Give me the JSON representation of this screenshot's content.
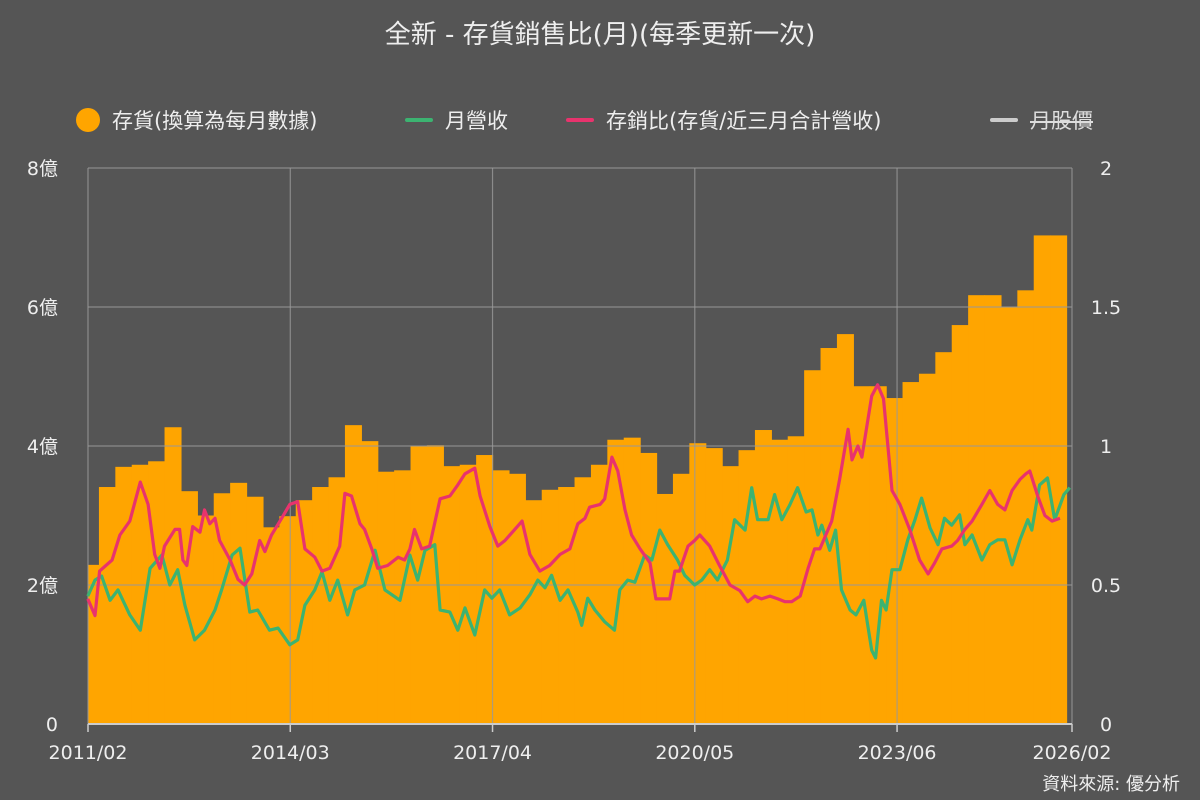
{
  "chart_data": {
    "type": "bar+line",
    "title": "全新 - 存貨銷售比(月)(每季更新一次)",
    "source": "資料來源: 優分析",
    "x_range": [
      "2011/02",
      "2026/02"
    ],
    "x_ticks": [
      "2011/02",
      "2014/03",
      "2017/04",
      "2020/05",
      "2023/06",
      "2026/02"
    ],
    "y_left": {
      "range": [
        0,
        8
      ],
      "ticks": [
        "0",
        "2億",
        "4億",
        "6億",
        "8億"
      ],
      "unit": "億"
    },
    "y_right": {
      "range": [
        0,
        2
      ],
      "ticks": [
        "0",
        "0.5",
        "1",
        "1.5",
        "2"
      ]
    },
    "grid": true,
    "legend_position": "top",
    "legend": [
      {
        "label": "存貨(換算為每月數據)",
        "color": "#FFA500",
        "symbol": "circle"
      },
      {
        "label": "月營收",
        "color": "#3CB371",
        "symbol": "line"
      },
      {
        "label": "存銷比(存貨/近三月合計營收)",
        "color": "#E8336D",
        "symbol": "line"
      },
      {
        "label": "月股價",
        "color": "#CCCCCC",
        "symbol": "line",
        "hidden": true
      }
    ],
    "inventory": {
      "name": "存貨(換算為每月數據)",
      "axis": "left",
      "period": "quarterly",
      "start": "2011/02",
      "values": [
        2.29,
        3.41,
        3.7,
        3.73,
        3.78,
        4.27,
        3.35,
        3.0,
        3.32,
        3.47,
        3.27,
        2.83,
        2.99,
        3.22,
        3.41,
        3.55,
        4.3,
        4.07,
        3.63,
        3.65,
        4.0,
        4.01,
        3.71,
        3.73,
        3.87,
        3.65,
        3.6,
        3.22,
        3.37,
        3.41,
        3.55,
        3.73,
        4.09,
        4.12,
        3.9,
        3.31,
        3.6,
        4.04,
        3.97,
        3.71,
        3.94,
        4.23,
        4.09,
        4.14,
        5.09,
        5.41,
        5.61,
        4.86,
        4.86,
        4.69,
        4.92,
        5.04,
        5.35,
        5.74,
        6.17,
        6.17,
        6.0,
        6.24,
        7.03,
        7.03
      ]
    },
    "revenue": {
      "name": "月營收",
      "axis": "left",
      "points": [
        [
          2011.08,
          1.84
        ],
        [
          2011.19,
          2.07
        ],
        [
          2011.29,
          2.13
        ],
        [
          2011.42,
          1.78
        ],
        [
          2011.54,
          1.93
        ],
        [
          2011.72,
          1.57
        ],
        [
          2011.88,
          1.35
        ],
        [
          2012.03,
          2.24
        ],
        [
          2012.21,
          2.43
        ],
        [
          2012.33,
          2.0
        ],
        [
          2012.45,
          2.22
        ],
        [
          2012.56,
          1.71
        ],
        [
          2012.71,
          1.21
        ],
        [
          2012.86,
          1.35
        ],
        [
          2013.02,
          1.64
        ],
        [
          2013.12,
          1.93
        ],
        [
          2013.28,
          2.43
        ],
        [
          2013.4,
          2.53
        ],
        [
          2013.55,
          1.61
        ],
        [
          2013.67,
          1.64
        ],
        [
          2013.85,
          1.35
        ],
        [
          2013.98,
          1.38
        ],
        [
          2014.16,
          1.14
        ],
        [
          2014.28,
          1.21
        ],
        [
          2014.39,
          1.71
        ],
        [
          2014.54,
          1.93
        ],
        [
          2014.65,
          2.19
        ],
        [
          2014.77,
          1.78
        ],
        [
          2014.89,
          2.07
        ],
        [
          2015.04,
          1.57
        ],
        [
          2015.15,
          1.93
        ],
        [
          2015.3,
          2.0
        ],
        [
          2015.46,
          2.5
        ],
        [
          2015.61,
          1.93
        ],
        [
          2015.84,
          1.78
        ],
        [
          2015.99,
          2.43
        ],
        [
          2016.11,
          2.07
        ],
        [
          2016.22,
          2.5
        ],
        [
          2016.37,
          2.58
        ],
        [
          2016.45,
          1.64
        ],
        [
          2016.6,
          1.61
        ],
        [
          2016.72,
          1.35
        ],
        [
          2016.83,
          1.67
        ],
        [
          2016.98,
          1.28
        ],
        [
          2017.13,
          1.93
        ],
        [
          2017.24,
          1.81
        ],
        [
          2017.36,
          1.93
        ],
        [
          2017.51,
          1.57
        ],
        [
          2017.67,
          1.67
        ],
        [
          2017.82,
          1.86
        ],
        [
          2017.94,
          2.07
        ],
        [
          2018.05,
          1.96
        ],
        [
          2018.15,
          2.14
        ],
        [
          2018.28,
          1.78
        ],
        [
          2018.4,
          1.93
        ],
        [
          2018.55,
          1.61
        ],
        [
          2018.61,
          1.42
        ],
        [
          2018.7,
          1.81
        ],
        [
          2018.81,
          1.64
        ],
        [
          2018.96,
          1.47
        ],
        [
          2019.11,
          1.35
        ],
        [
          2019.19,
          1.93
        ],
        [
          2019.31,
          2.07
        ],
        [
          2019.42,
          2.04
        ],
        [
          2019.57,
          2.43
        ],
        [
          2019.68,
          2.36
        ],
        [
          2019.8,
          2.79
        ],
        [
          2019.92,
          2.58
        ],
        [
          2020.07,
          2.36
        ],
        [
          2020.18,
          2.14
        ],
        [
          2020.33,
          2.0
        ],
        [
          2020.44,
          2.07
        ],
        [
          2020.56,
          2.22
        ],
        [
          2020.68,
          2.07
        ],
        [
          2020.83,
          2.36
        ],
        [
          2020.94,
          2.94
        ],
        [
          2021.1,
          2.79
        ],
        [
          2021.2,
          3.4
        ],
        [
          2021.29,
          2.94
        ],
        [
          2021.45,
          2.94
        ],
        [
          2021.55,
          3.3
        ],
        [
          2021.66,
          2.94
        ],
        [
          2021.78,
          3.15
        ],
        [
          2021.9,
          3.4
        ],
        [
          2022.03,
          3.05
        ],
        [
          2022.12,
          3.08
        ],
        [
          2022.21,
          2.72
        ],
        [
          2022.27,
          2.86
        ],
        [
          2022.39,
          2.5
        ],
        [
          2022.48,
          2.79
        ],
        [
          2022.57,
          1.93
        ],
        [
          2022.7,
          1.64
        ],
        [
          2022.79,
          1.57
        ],
        [
          2022.91,
          1.78
        ],
        [
          2023.03,
          1.06
        ],
        [
          2023.09,
          0.95
        ],
        [
          2023.18,
          1.78
        ],
        [
          2023.25,
          1.64
        ],
        [
          2023.34,
          2.22
        ],
        [
          2023.46,
          2.22
        ],
        [
          2023.58,
          2.65
        ],
        [
          2023.69,
          2.94
        ],
        [
          2023.79,
          3.25
        ],
        [
          2023.92,
          2.82
        ],
        [
          2024.04,
          2.58
        ],
        [
          2024.14,
          2.96
        ],
        [
          2024.25,
          2.86
        ],
        [
          2024.37,
          3.01
        ],
        [
          2024.45,
          2.58
        ],
        [
          2024.56,
          2.72
        ],
        [
          2024.71,
          2.36
        ],
        [
          2024.83,
          2.58
        ],
        [
          2024.95,
          2.65
        ],
        [
          2025.06,
          2.65
        ],
        [
          2025.17,
          2.29
        ],
        [
          2025.29,
          2.65
        ],
        [
          2025.41,
          2.94
        ],
        [
          2025.47,
          2.79
        ],
        [
          2025.59,
          3.44
        ],
        [
          2025.71,
          3.54
        ],
        [
          2025.82,
          2.94
        ],
        [
          2025.96,
          3.3
        ],
        [
          2026.05,
          3.4
        ]
      ]
    },
    "ratio": {
      "name": "存銷比(存貨/近三月合計營收)",
      "axis": "right",
      "points": [
        [
          2011.08,
          0.45
        ],
        [
          2011.19,
          0.39
        ],
        [
          2011.26,
          0.55
        ],
        [
          2011.45,
          0.59
        ],
        [
          2011.57,
          0.68
        ],
        [
          2011.72,
          0.73
        ],
        [
          2011.88,
          0.87
        ],
        [
          2012.0,
          0.79
        ],
        [
          2012.1,
          0.61
        ],
        [
          2012.18,
          0.56
        ],
        [
          2012.25,
          0.64
        ],
        [
          2012.41,
          0.7
        ],
        [
          2012.48,
          0.7
        ],
        [
          2012.53,
          0.59
        ],
        [
          2012.59,
          0.57
        ],
        [
          2012.68,
          0.71
        ],
        [
          2012.79,
          0.69
        ],
        [
          2012.86,
          0.77
        ],
        [
          2012.94,
          0.72
        ],
        [
          2013.02,
          0.74
        ],
        [
          2013.09,
          0.66
        ],
        [
          2013.25,
          0.59
        ],
        [
          2013.37,
          0.52
        ],
        [
          2013.47,
          0.5
        ],
        [
          2013.58,
          0.54
        ],
        [
          2013.7,
          0.66
        ],
        [
          2013.78,
          0.62
        ],
        [
          2013.88,
          0.68
        ],
        [
          2014.01,
          0.73
        ],
        [
          2014.16,
          0.79
        ],
        [
          2014.28,
          0.8
        ],
        [
          2014.39,
          0.63
        ],
        [
          2014.54,
          0.6
        ],
        [
          2014.65,
          0.55
        ],
        [
          2014.77,
          0.56
        ],
        [
          2014.92,
          0.64
        ],
        [
          2015.0,
          0.83
        ],
        [
          2015.1,
          0.82
        ],
        [
          2015.23,
          0.72
        ],
        [
          2015.3,
          0.7
        ],
        [
          2015.41,
          0.63
        ],
        [
          2015.5,
          0.56
        ],
        [
          2015.65,
          0.57
        ],
        [
          2015.81,
          0.6
        ],
        [
          2015.91,
          0.59
        ],
        [
          2015.99,
          0.63
        ],
        [
          2016.06,
          0.7
        ],
        [
          2016.17,
          0.63
        ],
        [
          2016.29,
          0.64
        ],
        [
          2016.45,
          0.81
        ],
        [
          2016.6,
          0.82
        ],
        [
          2016.72,
          0.86
        ],
        [
          2016.83,
          0.9
        ],
        [
          2016.98,
          0.92
        ],
        [
          2017.06,
          0.82
        ],
        [
          2017.21,
          0.71
        ],
        [
          2017.33,
          0.64
        ],
        [
          2017.44,
          0.66
        ],
        [
          2017.59,
          0.7
        ],
        [
          2017.7,
          0.73
        ],
        [
          2017.82,
          0.61
        ],
        [
          2017.97,
          0.55
        ],
        [
          2018.12,
          0.57
        ],
        [
          2018.28,
          0.61
        ],
        [
          2018.43,
          0.63
        ],
        [
          2018.55,
          0.72
        ],
        [
          2018.66,
          0.74
        ],
        [
          2018.73,
          0.78
        ],
        [
          2018.89,
          0.79
        ],
        [
          2018.96,
          0.81
        ],
        [
          2019.07,
          0.96
        ],
        [
          2019.16,
          0.91
        ],
        [
          2019.27,
          0.77
        ],
        [
          2019.37,
          0.68
        ],
        [
          2019.5,
          0.63
        ],
        [
          2019.65,
          0.58
        ],
        [
          2019.74,
          0.45
        ],
        [
          2019.83,
          0.45
        ],
        [
          2019.95,
          0.45
        ],
        [
          2020.03,
          0.55
        ],
        [
          2020.1,
          0.55
        ],
        [
          2020.23,
          0.64
        ],
        [
          2020.33,
          0.66
        ],
        [
          2020.41,
          0.68
        ],
        [
          2020.56,
          0.64
        ],
        [
          2020.71,
          0.57
        ],
        [
          2020.87,
          0.5
        ],
        [
          2021.02,
          0.48
        ],
        [
          2021.14,
          0.44
        ],
        [
          2021.25,
          0.46
        ],
        [
          2021.35,
          0.45
        ],
        [
          2021.48,
          0.46
        ],
        [
          2021.6,
          0.45
        ],
        [
          2021.71,
          0.44
        ],
        [
          2021.81,
          0.44
        ],
        [
          2021.94,
          0.46
        ],
        [
          2022.06,
          0.56
        ],
        [
          2022.16,
          0.63
        ],
        [
          2022.24,
          0.63
        ],
        [
          2022.42,
          0.73
        ],
        [
          2022.54,
          0.88
        ],
        [
          2022.67,
          1.06
        ],
        [
          2022.73,
          0.95
        ],
        [
          2022.82,
          1.0
        ],
        [
          2022.88,
          0.96
        ],
        [
          2023.03,
          1.18
        ],
        [
          2023.12,
          1.22
        ],
        [
          2023.21,
          1.17
        ],
        [
          2023.34,
          0.84
        ],
        [
          2023.46,
          0.79
        ],
        [
          2023.61,
          0.7
        ],
        [
          2023.76,
          0.59
        ],
        [
          2023.89,
          0.54
        ],
        [
          2023.99,
          0.58
        ],
        [
          2024.1,
          0.63
        ],
        [
          2024.25,
          0.64
        ],
        [
          2024.34,
          0.66
        ],
        [
          2024.45,
          0.7
        ],
        [
          2024.56,
          0.73
        ],
        [
          2024.71,
          0.79
        ],
        [
          2024.83,
          0.84
        ],
        [
          2024.95,
          0.79
        ],
        [
          2025.06,
          0.77
        ],
        [
          2025.17,
          0.84
        ],
        [
          2025.29,
          0.88
        ],
        [
          2025.38,
          0.9
        ],
        [
          2025.44,
          0.91
        ],
        [
          2025.56,
          0.82
        ],
        [
          2025.67,
          0.75
        ],
        [
          2025.78,
          0.73
        ],
        [
          2025.9,
          0.74
        ]
      ]
    }
  }
}
